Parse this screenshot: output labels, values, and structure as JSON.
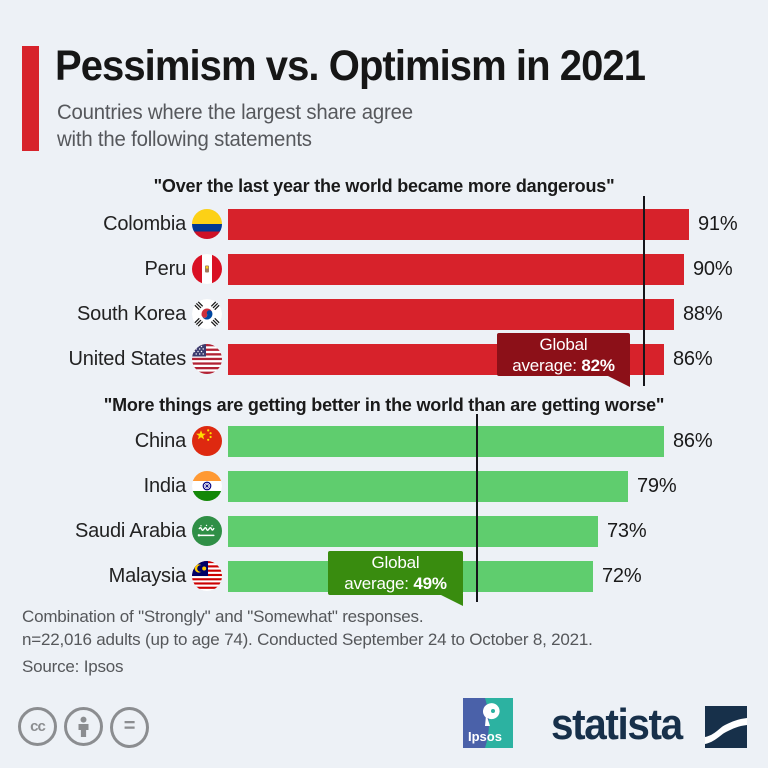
{
  "page": {
    "background": "#edf1f6",
    "accent_color": "#d7232b"
  },
  "header": {
    "title": "Pessimism vs. Optimism in 2021",
    "subtitle_line1": "Countries where the largest share agree",
    "subtitle_line2": "with the following statements"
  },
  "chart_data": [
    {
      "type": "bar",
      "statement": "\"Over the last year the world became more dangerous\"",
      "categories": [
        "Colombia",
        "Peru",
        "South Korea",
        "United States"
      ],
      "values": [
        91,
        90,
        88,
        86
      ],
      "value_labels": [
        "91%",
        "90%",
        "88%",
        "86%"
      ],
      "flags": [
        "colombia",
        "peru",
        "south-korea",
        "united-states"
      ],
      "bar_color": "#d7222b",
      "callout_color": "#8c1018",
      "global_average": 82,
      "callout_line1": "Global",
      "callout_line2_prefix": "average: ",
      "callout_value": "82%",
      "xlim": [
        0,
        100
      ],
      "orientation": "horizontal",
      "grid": false
    },
    {
      "type": "bar",
      "statement": "\"More things are getting better in the world than are getting worse\"",
      "categories": [
        "China",
        "India",
        "Saudi Arabia",
        "Malaysia"
      ],
      "values": [
        86,
        79,
        73,
        72
      ],
      "value_labels": [
        "86%",
        "79%",
        "73%",
        "72%"
      ],
      "flags": [
        "china",
        "india",
        "saudi-arabia",
        "malaysia"
      ],
      "bar_color": "#5fcd6e",
      "callout_color": "#398c0f",
      "global_average": 49,
      "callout_line1": "Global",
      "callout_line2_prefix": "average: ",
      "callout_value": "49%",
      "xlim": [
        0,
        100
      ],
      "orientation": "horizontal",
      "grid": false
    }
  ],
  "footer": {
    "note_line1": "Combination of \"Strongly\" and \"Somewhat\" responses.",
    "note_line2": "n=22,016 adults (up to age 74). Conducted September 24 to October 8, 2021.",
    "source": "Source: Ipsos"
  },
  "branding": {
    "ipsos_label": "Ipsos",
    "statista_label": "statista"
  },
  "license": {
    "cc_label": "cc",
    "equal_label": "="
  }
}
